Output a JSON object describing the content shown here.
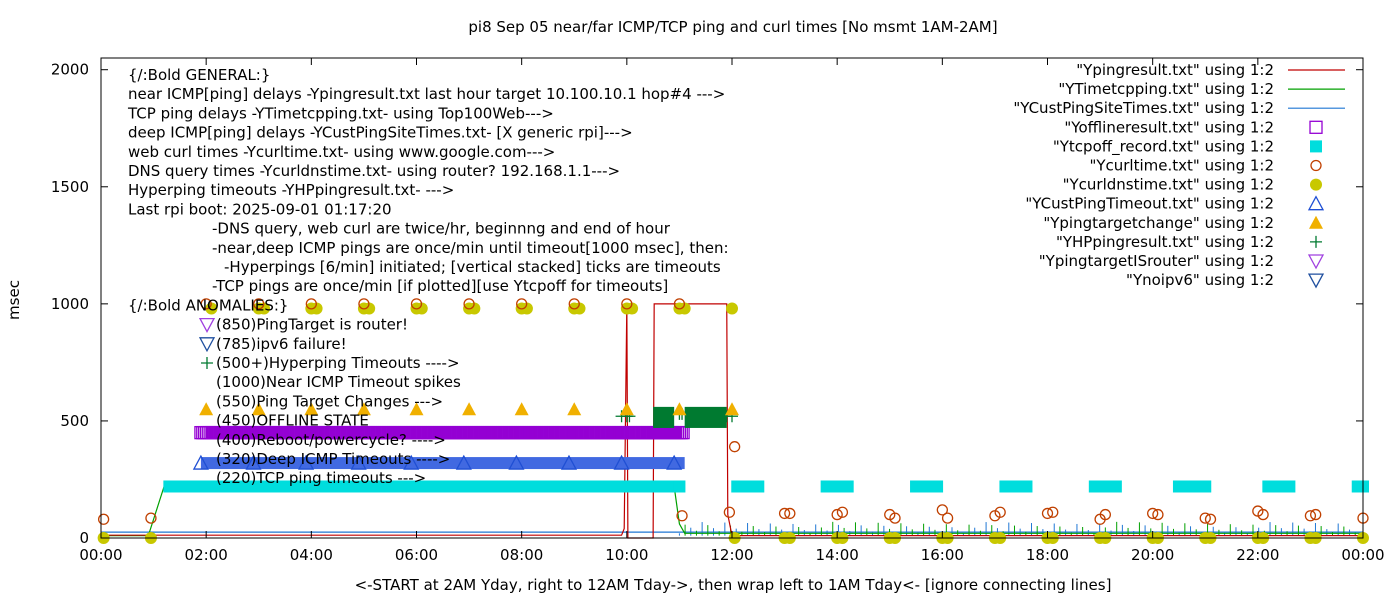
{
  "chart_data": {
    "type": "scatter",
    "title": "pi8 Sep 05  near/far ICMP/TCP ping and curl times [No msmt 1AM-2AM]",
    "xlabel": "<-START at 2AM Yday, right to 12AM Tday->, then wrap left to 1AM Tday<- [ignore connecting lines]",
    "ylabel": "msec",
    "xlim": [
      0,
      24
    ],
    "ylim": [
      0,
      2050
    ],
    "xticks": [
      {
        "v": 0,
        "label": "00:00"
      },
      {
        "v": 2,
        "label": "02:00"
      },
      {
        "v": 4,
        "label": "04:00"
      },
      {
        "v": 6,
        "label": "06:00"
      },
      {
        "v": 8,
        "label": "08:00"
      },
      {
        "v": 10,
        "label": "10:00"
      },
      {
        "v": 12,
        "label": "12:00"
      },
      {
        "v": 14,
        "label": "14:00"
      },
      {
        "v": 16,
        "label": "16:00"
      },
      {
        "v": 18,
        "label": "18:00"
      },
      {
        "v": 20,
        "label": "20:00"
      },
      {
        "v": 22,
        "label": "22:00"
      },
      {
        "v": 24,
        "label": "00:00"
      }
    ],
    "yticks": [
      {
        "v": 0,
        "label": "0"
      },
      {
        "v": 500,
        "label": "500"
      },
      {
        "v": 1000,
        "label": "1000"
      },
      {
        "v": 1500,
        "label": "1500"
      },
      {
        "v": 2000,
        "label": "2000"
      }
    ],
    "legend_position": "top-right",
    "legend": [
      {
        "label": "\"Ypingresult.txt\" using 1:2",
        "style": "line",
        "color": "#c00000"
      },
      {
        "label": "\"YTimetcpping.txt\" using 1:2",
        "style": "line",
        "color": "#00a000"
      },
      {
        "label": "\"YCustPingSiteTimes.txt\" using 1:2",
        "style": "line",
        "color": "#1f77d4"
      },
      {
        "label": "\"Yofflineresult.txt\" using 1:2",
        "style": "open-square",
        "color": "#9400d3"
      },
      {
        "label": "\"Ytcpoff_record.txt\" using 1:2",
        "style": "filled-square",
        "color": "#00dddd"
      },
      {
        "label": "\"Ycurltime.txt\" using 1:2",
        "style": "open-circle",
        "color": "#c04000"
      },
      {
        "label": "\"Ycurldnstime.txt\" using 1:2",
        "style": "filled-circle",
        "color": "#c8c800"
      },
      {
        "label": "\"YCustPingTimeout.txt\" using 1:2",
        "style": "open-triangle",
        "color": "#1f4fd4"
      },
      {
        "label": "\"Ypingtargetchange\" using 1:2",
        "style": "filled-triangle",
        "color": "#f0b000"
      },
      {
        "label": "\"YHPpingresult.txt\" using 1:2",
        "style": "plus",
        "color": "#007a30"
      },
      {
        "label": "\"YpingtargetISrouter\" using 1:2",
        "style": "open-triangle-down",
        "color": "#a040e0"
      },
      {
        "label": "\"Ynoipv6\" using 1:2",
        "style": "open-triangle-down",
        "color": "#1f4f9f"
      }
    ],
    "annotations": [
      "{/:Bold GENERAL:}",
      "near ICMP[ping] delays -Ypingresult.txt last hour target 10.100.10.1 hop#4 --->",
      "TCP ping delays -YTimetcpping.txt- using Top100Web--->",
      "deep ICMP[ping] delays -YCustPingSiteTimes.txt- [X generic rpi]--->",
      "web curl times -Ycurltime.txt- using www.google.com--->",
      "DNS query times -Ycurldnstime.txt- using router? 192.168.1.1--->",
      "Hyperping timeouts -YHPpingresult.txt- --->",
      "Last rpi boot: 2025-09-01 01:17:20",
      "-DNS query, web curl are twice/hr, beginnng and end of hour",
      "-near,deep ICMP pings are once/min until timeout[1000 msec], then:",
      "-Hyperpings [6/min] initiated; [vertical stacked] ticks are timeouts",
      "-TCP pings are once/min [if plotted][use Ytcpoff for timeouts]",
      "{/:Bold ANOMALIES:}",
      "(850)PingTarget is router!",
      "(785)ipv6 failure!",
      "(500+)Hyperping Timeouts ---->",
      "(1000)Near ICMP Timeout spikes",
      "(550)Ping Target Changes --->",
      "(450)OFFLINE STATE",
      "(400)Reboot/powercycle? ---->",
      "(320)Deep ICMP Timeouts ---->",
      "(220)TCP ping timeouts --->"
    ],
    "series": {
      "ypingresult": {
        "name": "Ypingresult.txt",
        "x": [
          0,
          9.9,
          9.95,
          10.0,
          10.02,
          10.05,
          10.5,
          10.52,
          11.9,
          11.92,
          12.0,
          24
        ],
        "y": [
          12,
          12,
          40,
          1000,
          0,
          0,
          0,
          1000,
          1000,
          100,
          10,
          10
        ]
      },
      "ytcp": {
        "name": "YTimetcpping.txt",
        "x": [
          0,
          0.9,
          1.2,
          10.9,
          11.0,
          11.1,
          24
        ],
        "y": [
          10,
          10,
          220,
          220,
          60,
          20,
          20
        ]
      },
      "ycustping": {
        "name": "YCustPingSiteTimes.txt",
        "x": [
          0,
          24
        ],
        "y": [
          25,
          25
        ]
      },
      "offline_bar": {
        "name": "Yofflineresult.txt",
        "x_start": 1.9,
        "x_end": 11.1,
        "y": 450
      },
      "tcpoff": {
        "name": "Ytcpoff_record.txt",
        "x": [
          1.3,
          11.0,
          12.1,
          13.8,
          15.5,
          17.2,
          18.9,
          20.5,
          20.8,
          22.2,
          23.9
        ],
        "x_end": [
          10.9,
          11.0,
          12.5,
          14.2,
          15.9,
          17.6,
          19.3,
          20.6,
          21.0,
          22.6,
          24.0
        ],
        "y": 220
      },
      "curltime": {
        "x": [
          0.05,
          0.95,
          2.0,
          3.0,
          4.0,
          5.0,
          6.0,
          7.0,
          8.0,
          9.0,
          10.0,
          11.0,
          11.05,
          11.95,
          12.05,
          13.0,
          13.1,
          14.0,
          14.1,
          15.0,
          15.1,
          16.0,
          16.1,
          17.0,
          17.1,
          18.0,
          18.1,
          19.0,
          19.1,
          20.0,
          20.1,
          21.0,
          21.1,
          22.0,
          22.1,
          23.0,
          23.1,
          24.0
        ],
        "y": [
          80,
          85,
          1000,
          1000,
          1000,
          1000,
          1000,
          1000,
          1000,
          1000,
          1000,
          1000,
          95,
          110,
          390,
          105,
          105,
          100,
          110,
          100,
          85,
          120,
          85,
          95,
          110,
          105,
          110,
          80,
          100,
          105,
          100,
          85,
          80,
          115,
          100,
          95,
          100,
          85
        ]
      },
      "curldns": {
        "x": [
          0.05,
          0.95,
          2.1,
          3.0,
          3.1,
          4.0,
          4.1,
          5.0,
          5.1,
          6.0,
          6.1,
          7.0,
          7.1,
          8.0,
          8.1,
          9.0,
          9.1,
          10.0,
          10.1,
          11.0,
          11.1,
          12.0,
          12.05,
          13.0,
          13.1,
          14.0,
          14.1,
          15.0,
          15.1,
          16.0,
          16.1,
          17.0,
          17.1,
          18.0,
          18.1,
          19.0,
          19.1,
          20.0,
          20.1,
          21.0,
          21.1,
          22.0,
          22.1,
          23.0,
          23.1,
          24.0
        ],
        "y": [
          0,
          0,
          980,
          980,
          980,
          980,
          980,
          980,
          980,
          980,
          980,
          980,
          980,
          980,
          980,
          980,
          980,
          980,
          980,
          980,
          980,
          980,
          0,
          0,
          0,
          0,
          0,
          0,
          0,
          0,
          0,
          0,
          0,
          0,
          0,
          0,
          0,
          0,
          0,
          0,
          0,
          0,
          0,
          0,
          0,
          0
        ]
      },
      "custpingtimeout_bar": {
        "x_start": 1.9,
        "x_end": 11.1,
        "y": 320
      },
      "targetchange": {
        "x": [
          2.0,
          3.0,
          4.0,
          5.0,
          6.0,
          7.0,
          8.0,
          9.0,
          10.0,
          11.0,
          12.0
        ],
        "y": [
          550,
          550,
          550,
          550,
          550,
          550,
          550,
          550,
          550,
          550,
          550
        ]
      },
      "hpping_blocks": [
        {
          "x_start": 10.5,
          "x_end": 10.9,
          "y_low": 470,
          "y_high": 560
        },
        {
          "x_start": 11.1,
          "x_end": 11.9,
          "y_low": 470,
          "y_high": 560
        }
      ],
      "hpping_plus": {
        "x": [
          9.9,
          10.0,
          10.05,
          11.0,
          11.05,
          11.9,
          12.0
        ],
        "y": [
          520,
          520,
          520,
          530,
          530,
          520,
          520
        ]
      },
      "pingtargetrouter": {
        "x": [
          2.0
        ],
        "y": [
          850
        ]
      },
      "noipv6": {
        "x": [
          2.0
        ],
        "y": [
          785
        ]
      }
    }
  }
}
